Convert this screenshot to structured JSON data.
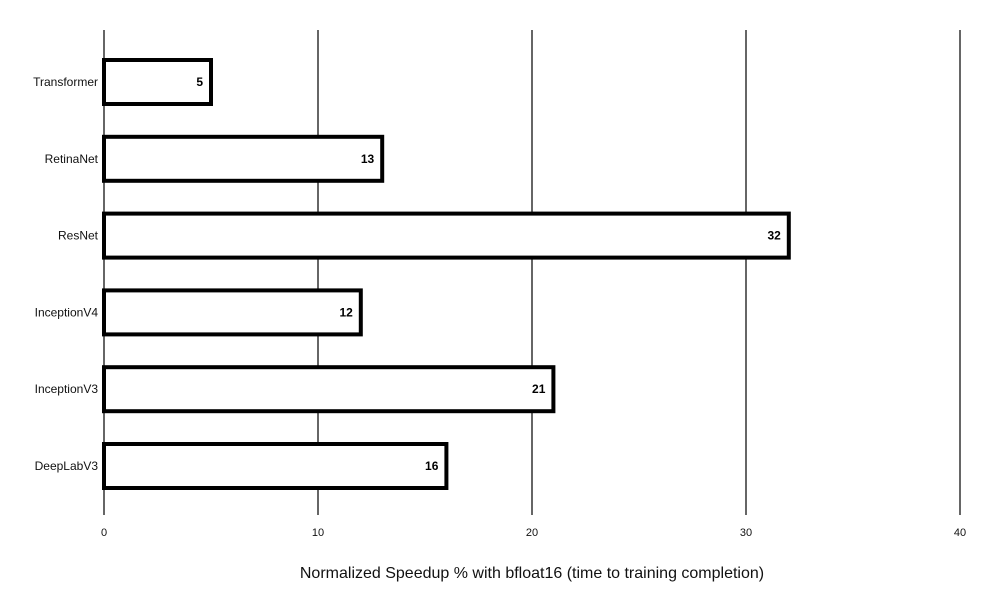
{
  "chart_data": {
    "type": "bar",
    "orientation": "horizontal",
    "categories": [
      "Transformer",
      "RetinaNet",
      "ResNet",
      "InceptionV4",
      "InceptionV3",
      "DeepLabV3"
    ],
    "values": [
      5,
      13,
      32,
      12,
      21,
      16
    ],
    "data_labels": [
      "5",
      "13",
      "32",
      "12",
      "21",
      "16"
    ],
    "xlabel": "Normalized Speedup % with bfloat16 (time to training completion)",
    "ylabel": "",
    "title": "",
    "xlim": [
      0,
      40
    ],
    "xticks": [
      0,
      10,
      20,
      30,
      40
    ],
    "xtick_labels": [
      "0",
      "10",
      "20",
      "30",
      "40"
    ],
    "grid": "vertical",
    "legend": "none",
    "colors": {
      "bar_fill": "#ffffff",
      "bar_stroke": "#000000",
      "grid": "#000000"
    }
  }
}
